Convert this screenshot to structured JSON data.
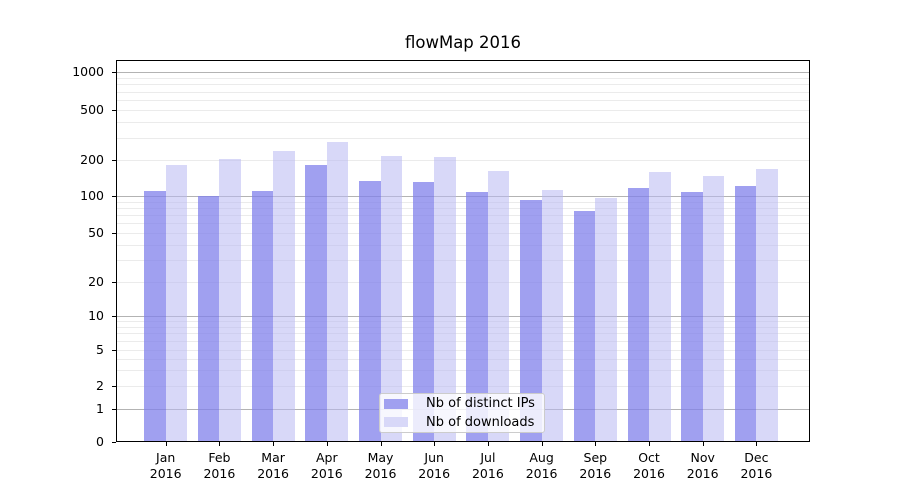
{
  "chart_data": {
    "type": "bar",
    "title": "flowMap 2016",
    "categories": [
      "Jan 2016",
      "Feb 2016",
      "Mar 2016",
      "Apr 2016",
      "May 2016",
      "Jun 2016",
      "Jul 2016",
      "Aug 2016",
      "Sep 2016",
      "Oct 2016",
      "Nov 2016",
      "Dec 2016"
    ],
    "series": [
      {
        "name": "Nb of distinct IPs",
        "color": "#a0a0f0",
        "bar_fill": "rgba(128,128,235,0.75)",
        "values": [
          110,
          100,
          110,
          182,
          133,
          131,
          109,
          93,
          76,
          116,
          109,
          122
        ]
      },
      {
        "name": "Nb of downloads",
        "color": "#d8d8f8",
        "bar_fill": "rgba(184,184,242,0.55)",
        "values": [
          182,
          203,
          236,
          280,
          216,
          211,
          163,
          113,
          96,
          159,
          146,
          168
        ]
      }
    ],
    "xlabel": "",
    "ylabel": "",
    "yscale": "symlog",
    "ylim": [
      0,
      1250
    ],
    "yticks": [
      0,
      1,
      2,
      5,
      10,
      20,
      50,
      100,
      200,
      500,
      1000
    ],
    "grid": "on",
    "legend_position": "lower center"
  },
  "axes": {
    "y_tick_labels": [
      "0",
      "1",
      "2",
      "5",
      "10",
      "20",
      "50",
      "100",
      "200",
      "500",
      "1000"
    ],
    "x_tick_months": [
      "Jan",
      "Feb",
      "Mar",
      "Apr",
      "May",
      "Jun",
      "Jul",
      "Aug",
      "Sep",
      "Oct",
      "Nov",
      "Dec"
    ],
    "x_tick_year": "2016"
  },
  "colors": {
    "major_gridline": "#b3b3b3",
    "minor_gridline": "#ebebeb",
    "spine": "#000000"
  }
}
